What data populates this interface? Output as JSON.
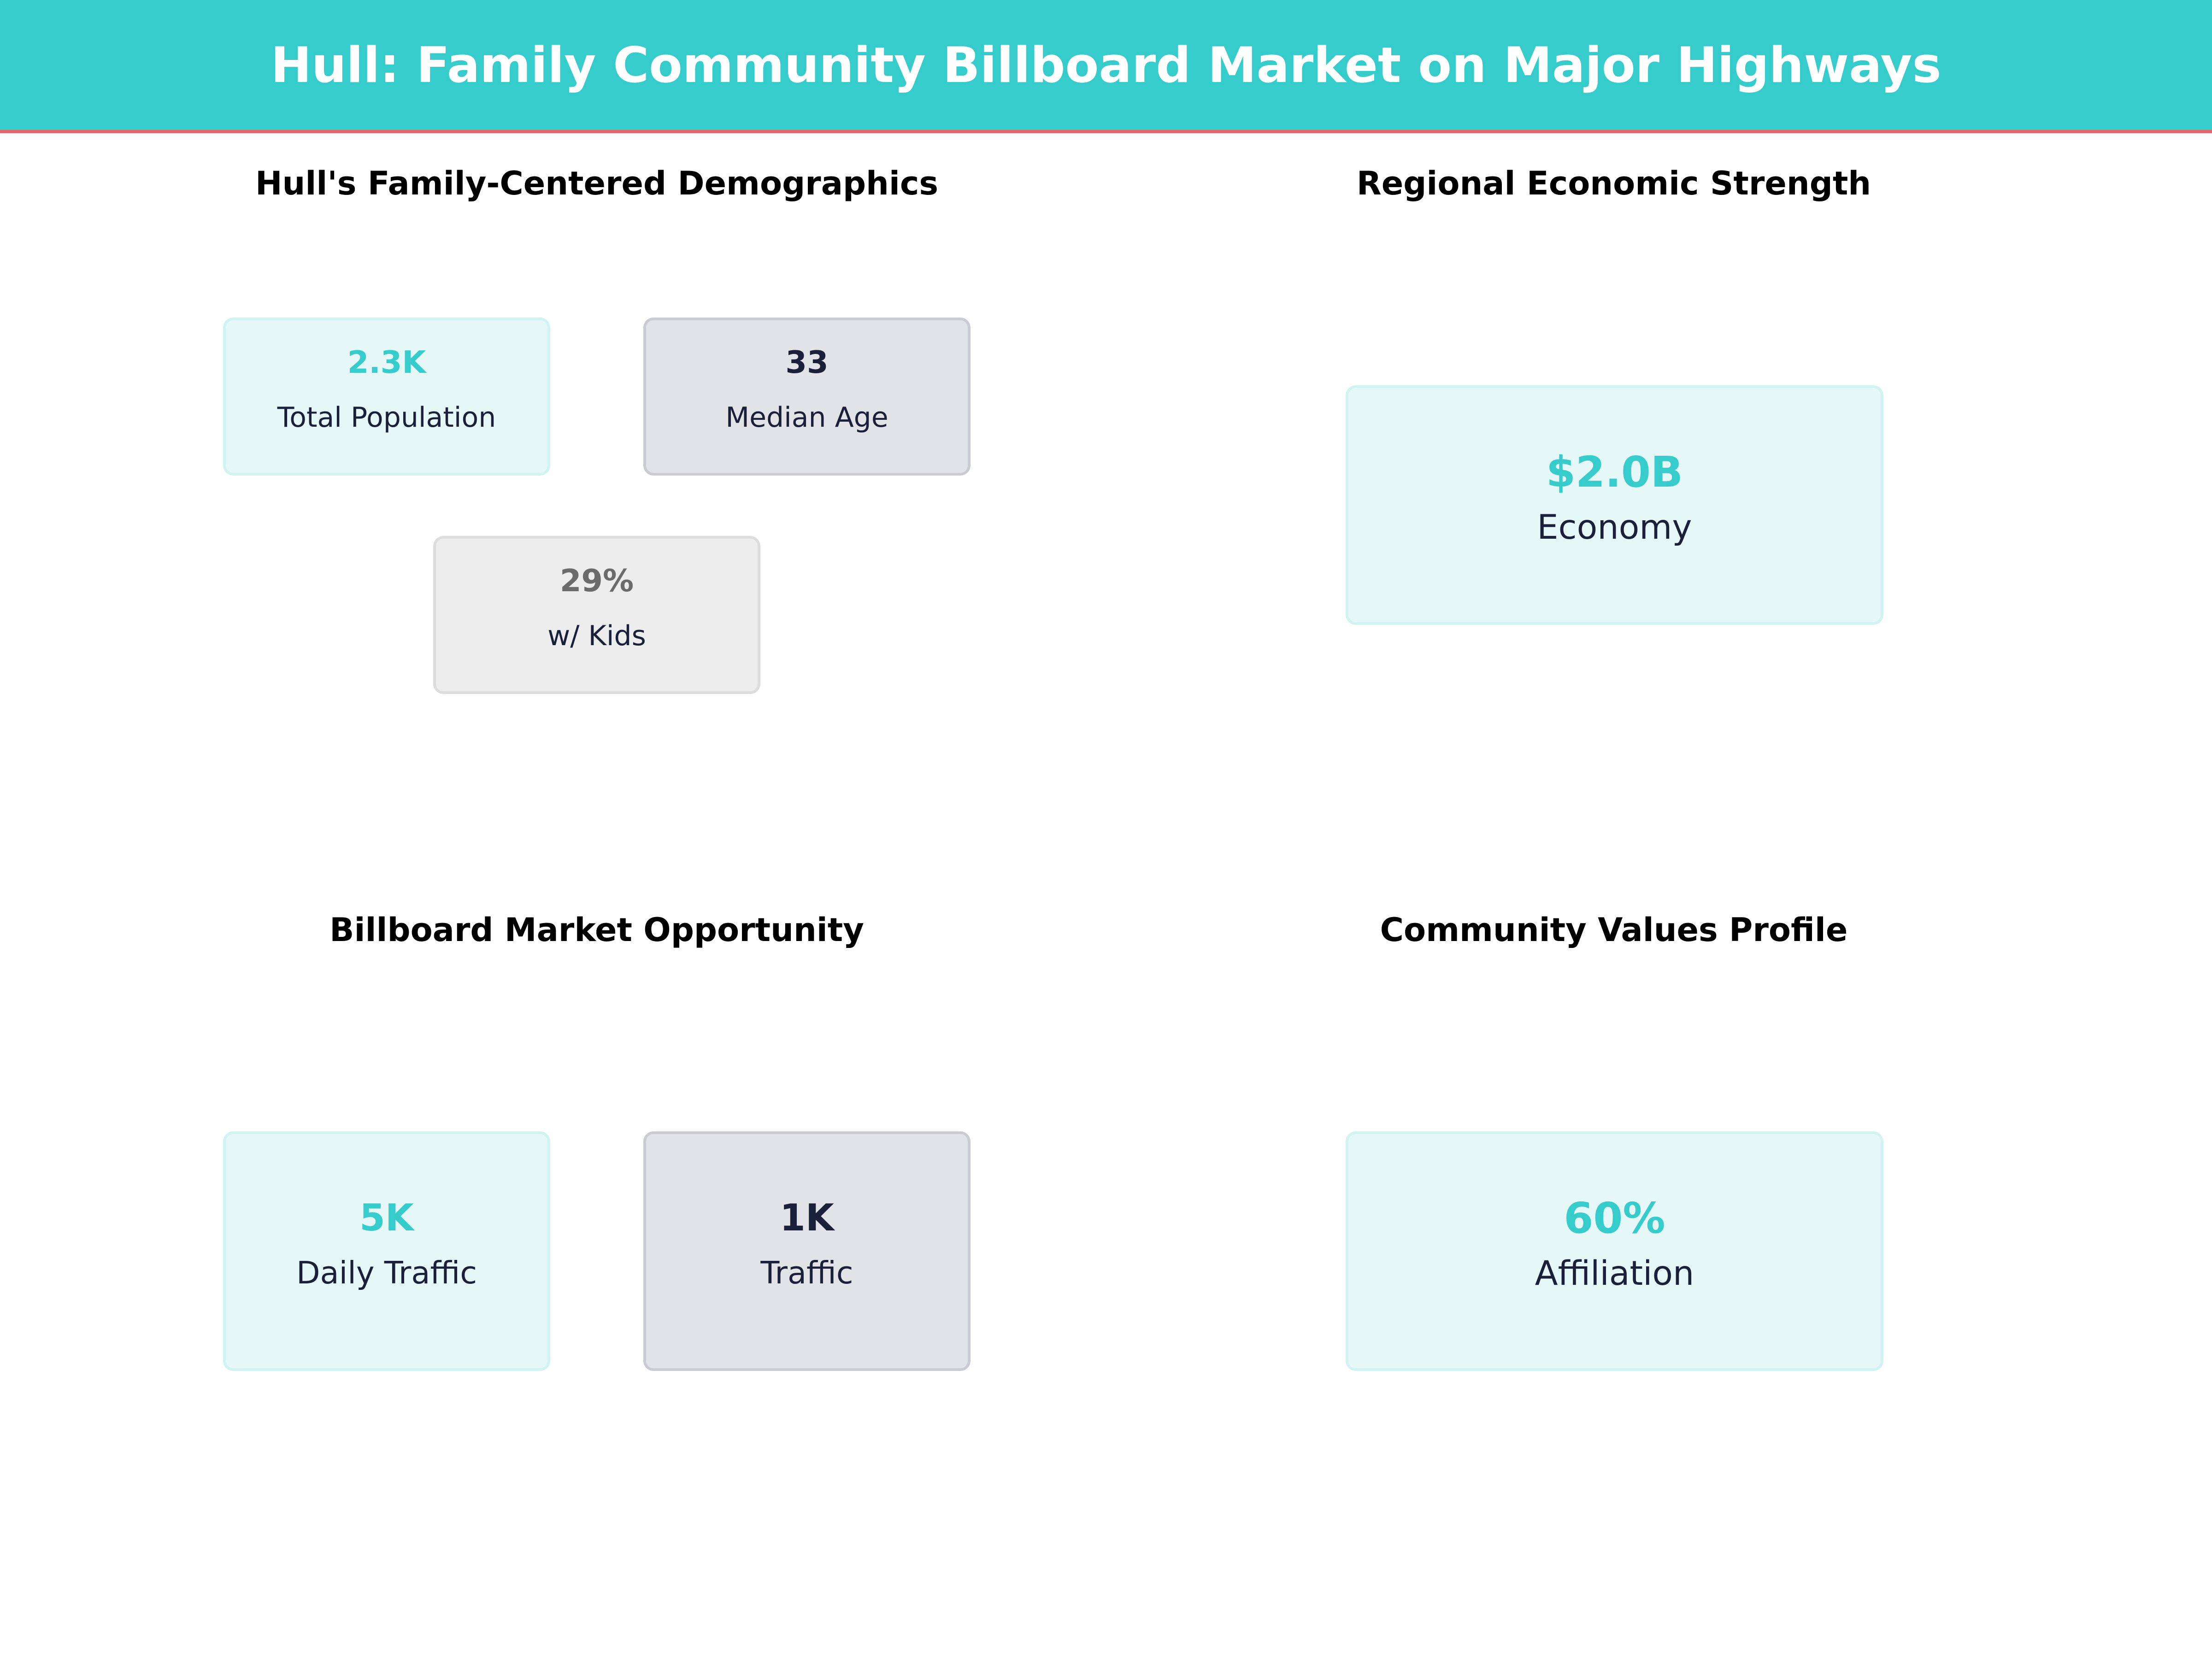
{
  "header": {
    "title": "Hull: Family Community Billboard Market on Major Highways"
  },
  "colors": {
    "accent": "#36CCCC",
    "accent_line": "#E8636F",
    "dark": "#1A1F3A",
    "muted": "#6B6B6B"
  },
  "panels": [
    {
      "title": "Hull's Family-Centered Demographics",
      "cards": [
        {
          "value": "2.3K",
          "label": "Total Population"
        },
        {
          "value": "33",
          "label": "Median Age"
        },
        {
          "value": "29%",
          "label": "w/ Kids"
        }
      ]
    },
    {
      "title": "Regional Economic Strength",
      "cards": [
        {
          "value": "$2.0B",
          "label": "Economy"
        }
      ]
    },
    {
      "title": "Billboard Market Opportunity",
      "cards": [
        {
          "value": "5K",
          "label": "Daily Traffic"
        },
        {
          "value": "1K",
          "label": "Traffic"
        }
      ]
    },
    {
      "title": "Community Values Profile",
      "cards": [
        {
          "value": "60%",
          "label": "Affiliation"
        }
      ]
    }
  ]
}
